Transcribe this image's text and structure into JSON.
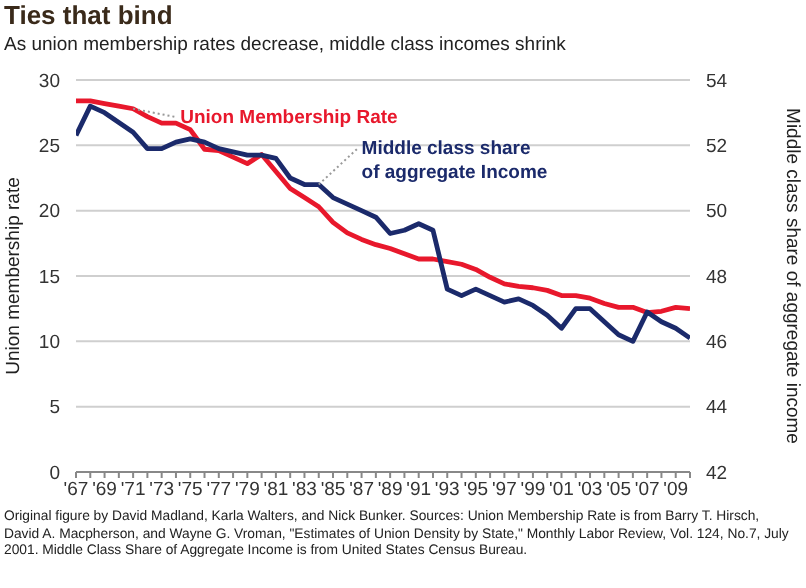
{
  "chart_data": {
    "type": "line",
    "title": "Ties that bind",
    "subtitle": "As union membership rates decrease, middle class incomes shrink",
    "ylabel": "Union membership rate",
    "y2label": "Middle class share of aggregate income",
    "x": [
      1967,
      1968,
      1969,
      1970,
      1971,
      1972,
      1973,
      1974,
      1975,
      1976,
      1977,
      1978,
      1979,
      1980,
      1981,
      1982,
      1983,
      1984,
      1985,
      1986,
      1987,
      1988,
      1989,
      1990,
      1991,
      1992,
      1993,
      1994,
      1995,
      1996,
      1997,
      1998,
      1999,
      2000,
      2001,
      2002,
      2003,
      2004,
      2005,
      2006,
      2007,
      2008,
      2009,
      2010
    ],
    "series": [
      {
        "name": "Union Membership Rate",
        "color": "#e8182c",
        "values": [
          28.4,
          28.4,
          28.2,
          28.0,
          27.8,
          27.2,
          26.7,
          26.7,
          26.2,
          24.7,
          24.6,
          24.1,
          23.6,
          24.3,
          23.0,
          21.7,
          21.0,
          20.3,
          19.1,
          18.3,
          17.8,
          17.4,
          17.1,
          16.7,
          16.3,
          16.3,
          16.1,
          15.9,
          15.5,
          14.9,
          14.4,
          14.2,
          14.1,
          13.9,
          13.5,
          13.5,
          13.3,
          12.9,
          12.6,
          12.6,
          12.2,
          12.3,
          12.6,
          12.5
        ]
      },
      {
        "name": "Middle class share of aggregate Income",
        "color": "#1b2a6b",
        "axis": "y2",
        "values": [
          52.3,
          53.2,
          53.0,
          52.7,
          52.4,
          51.9,
          51.9,
          52.1,
          52.2,
          52.1,
          51.9,
          51.8,
          51.7,
          51.7,
          51.6,
          51.0,
          50.8,
          50.8,
          50.4,
          50.2,
          50.0,
          49.8,
          49.3,
          49.4,
          49.6,
          49.4,
          47.6,
          47.4,
          47.6,
          47.4,
          47.2,
          47.3,
          47.1,
          46.8,
          46.4,
          47.0,
          47.0,
          46.6,
          46.2,
          46.0,
          46.9,
          46.6,
          46.4,
          46.1
        ]
      }
    ],
    "xlim": [
      1967,
      2010
    ],
    "xticks": [
      {
        "value": 1967,
        "label": "'67"
      },
      {
        "value": 1968,
        "label": null
      },
      {
        "value": 1969,
        "label": "'69"
      },
      {
        "value": 1970,
        "label": null
      },
      {
        "value": 1971,
        "label": "'71"
      },
      {
        "value": 1972,
        "label": null
      },
      {
        "value": 1973,
        "label": "'73"
      },
      {
        "value": 1974,
        "label": null
      },
      {
        "value": 1975,
        "label": "'75"
      },
      {
        "value": 1976,
        "label": null
      },
      {
        "value": 1977,
        "label": "'77"
      },
      {
        "value": 1978,
        "label": null
      },
      {
        "value": 1979,
        "label": "'79"
      },
      {
        "value": 1980,
        "label": null
      },
      {
        "value": 1981,
        "label": "'81"
      },
      {
        "value": 1982,
        "label": null
      },
      {
        "value": 1983,
        "label": "'83"
      },
      {
        "value": 1984,
        "label": null
      },
      {
        "value": 1985,
        "label": "'85"
      },
      {
        "value": 1986,
        "label": null
      },
      {
        "value": 1987,
        "label": "'87"
      },
      {
        "value": 1988,
        "label": null
      },
      {
        "value": 1989,
        "label": "'89"
      },
      {
        "value": 1990,
        "label": null
      },
      {
        "value": 1991,
        "label": "'91"
      },
      {
        "value": 1992,
        "label": null
      },
      {
        "value": 1993,
        "label": "'93"
      },
      {
        "value": 1994,
        "label": null
      },
      {
        "value": 1995,
        "label": "'95"
      },
      {
        "value": 1996,
        "label": null
      },
      {
        "value": 1997,
        "label": "'97"
      },
      {
        "value": 1998,
        "label": null
      },
      {
        "value": 1999,
        "label": "'99"
      },
      {
        "value": 2000,
        "label": null
      },
      {
        "value": 2001,
        "label": "'01"
      },
      {
        "value": 2002,
        "label": null
      },
      {
        "value": 2003,
        "label": "'03"
      },
      {
        "value": 2004,
        "label": null
      },
      {
        "value": 2005,
        "label": "'05"
      },
      {
        "value": 2006,
        "label": null
      },
      {
        "value": 2007,
        "label": "'07"
      },
      {
        "value": 2008,
        "label": null
      },
      {
        "value": 2009,
        "label": "'09"
      },
      {
        "value": 2010,
        "label": null
      }
    ],
    "ylim": [
      0,
      30
    ],
    "yticks": [
      0,
      5,
      10,
      15,
      20,
      25,
      30
    ],
    "y2lim": [
      42,
      54
    ],
    "y2ticks": [
      42,
      44,
      46,
      48,
      50,
      52,
      54
    ],
    "grid": "y",
    "marker": "none",
    "line_style": "solid",
    "annotations": [
      "Original figure by David Madland, Karla Walters, and Nick Bunker. Sources: Union Membership Rate is from Barry T. Hirsch, David A. Macpherson, and Wayne G. Vroman, \"Estimates of Union Density by State,\" Monthly Labor Review, Vol. 124, No.7, July 2001. Middle Class Share of Aggregate Income is from United States Census Bureau."
    ]
  }
}
